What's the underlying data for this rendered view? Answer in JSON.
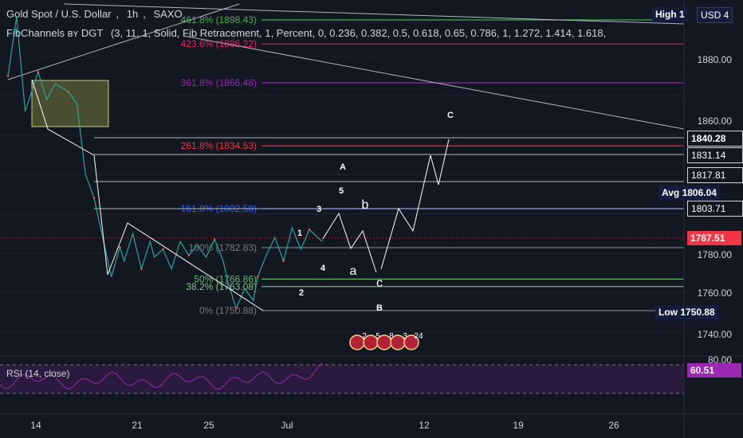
{
  "header": {
    "symbol": "Gold Spot / U.S. Dollar",
    "interval": "1h",
    "source": "SAXO",
    "indicator": "FibChannels ʙʏ DGT",
    "indicator_params": "(3, 11, 1, Solid, Fib Retracement, 1, Percent, 0, 0.236, 0.382, 0.5, 0.618, 0.65, 0.786, 1, 1.272, 1.414, 1.618,"
  },
  "price_axis": {
    "ticks": [
      "1880.00",
      "1860.00",
      "1780.00",
      "1760.00",
      "1740.00",
      "80.00"
    ],
    "currency": "USD 4",
    "high_label": "High",
    "high_value": "1",
    "avg_label": "Avg",
    "avg_value": "1806.04",
    "low_label": "Low",
    "low_value": "1750.88",
    "current": "1787.51",
    "levels": [
      "1840.28",
      "1831.14",
      "1817.81",
      "1803.71"
    ]
  },
  "time_axis": {
    "ticks": [
      "14",
      "21",
      "25",
      "Jul",
      "12",
      "19",
      "26"
    ]
  },
  "fib_labels": [
    {
      "text": "461.8% (1898.43)",
      "color": "#4caf50"
    },
    {
      "text": "423.6% (1886.22)",
      "color": "#e91e63"
    },
    {
      "text": "361.8% (1866.48)",
      "color": "#9c27b0"
    },
    {
      "text": "261.8% (1834.53)",
      "color": "#f23645"
    },
    {
      "text": "161.8% (1802.58)",
      "color": "#2962ff"
    },
    {
      "text": "100% (1782.83)",
      "color": "#787b86"
    },
    {
      "text": "50% (1766.86)",
      "color": "#66bb6a"
    },
    {
      "text": "38.2% (1763.08)",
      "color": "#81c784"
    },
    {
      "text": "0% (1750.88)",
      "color": "#787b86"
    }
  ],
  "wave_labels": [
    "1",
    "2",
    "3",
    "4",
    "5",
    "A",
    "B",
    "C",
    "a",
    "b",
    "c"
  ],
  "events": [
    "2",
    "5",
    "8",
    "3",
    "24"
  ],
  "rsi": {
    "label": "RSI (14, close)",
    "value": "60.51"
  },
  "colors": {
    "background": "#131722",
    "rsi": "#9c27b0",
    "rsi_band": "#2a1a3e",
    "avg": "#131e3f",
    "last": "#f23645"
  },
  "chart_data": {
    "type": "line",
    "title": "Gold Spot / U.S. Dollar, 1h, SAXO",
    "y_unit": "USD",
    "ylim": [
      1733,
      1907
    ],
    "x_ticks": [
      "14",
      "21",
      "25",
      "Jul",
      "12",
      "19",
      "26"
    ],
    "series": [
      {
        "name": "",
        "x": [
          0,
          2,
          4,
          7,
          9,
          11,
          14,
          16,
          18,
          20,
          22,
          24,
          26,
          27,
          29,
          31,
          33,
          34,
          36,
          38,
          40,
          42,
          44,
          46,
          48,
          50,
          51,
          53,
          55,
          57,
          58,
          60,
          62,
          64,
          66,
          68,
          70,
          73
        ],
        "y": [
          1870,
          1900,
          1852,
          1872,
          1858,
          1866,
          1862,
          1856,
          1820,
          1808,
          1788,
          1768,
          1783,
          1776,
          1790,
          1772,
          1786,
          1778,
          1782,
          1772,
          1786,
          1779,
          1784,
          1778,
          1787,
          1776,
          1766,
          1752,
          1762,
          1756,
          1768,
          1779,
          1788,
          1776,
          1793,
          1782,
          1792,
          1786
        ]
      }
    ],
    "fib_levels": [
      1898.43,
      1886.22,
      1866.48,
      1834.53,
      1802.58,
      1782.83,
      1766.86,
      1763.08,
      1750.88
    ],
    "rsi": {
      "name": "RSI (14, close)",
      "last": 60.51,
      "bands": [
        30,
        70
      ]
    }
  }
}
